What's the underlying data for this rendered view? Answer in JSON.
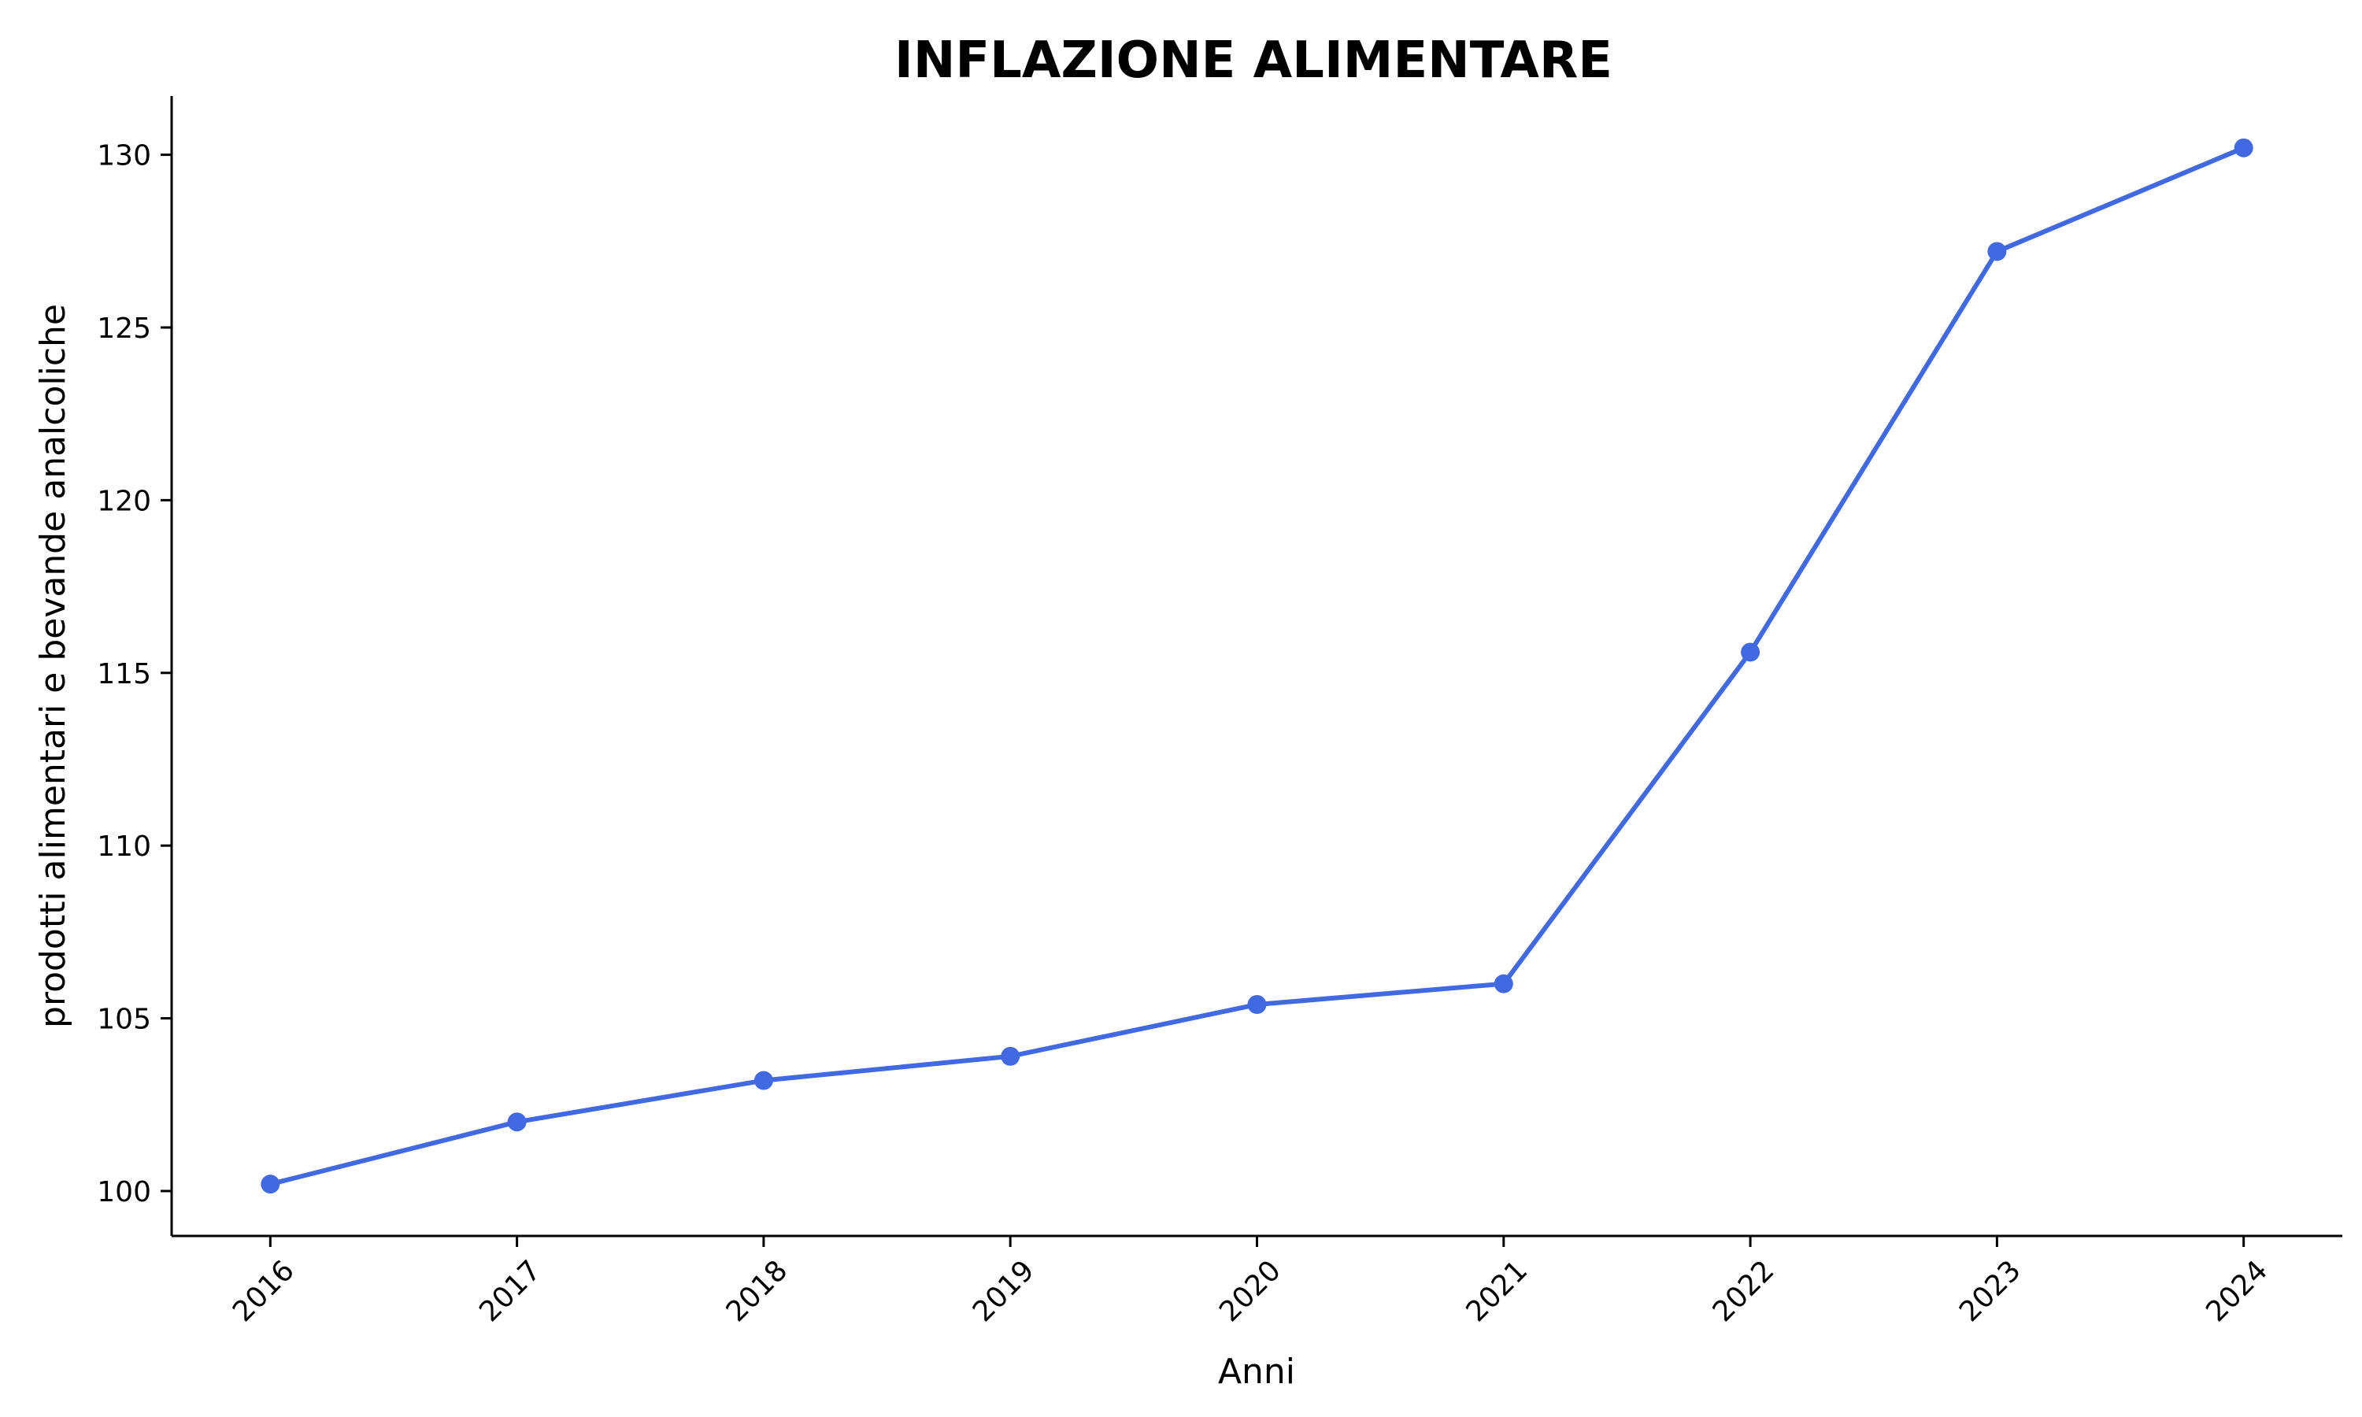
{
  "chart_data": {
    "type": "line",
    "title": "INFLAZIONE ALIMENTARE",
    "xlabel": "Anni",
    "ylabel": "prodotti alimentari e bevande analcoliche",
    "categories": [
      "2016",
      "2017",
      "2018",
      "2019",
      "2020",
      "2021",
      "2022",
      "2023",
      "2024"
    ],
    "x": [
      2016,
      2017,
      2018,
      2019,
      2020,
      2021,
      2022,
      2023,
      2024
    ],
    "series": [
      {
        "values": [
          100.2,
          102.0,
          103.2,
          103.9,
          105.4,
          106.0,
          115.6,
          127.2,
          130.2
        ],
        "color": "#4169e1"
      }
    ],
    "yticks": [
      100,
      105,
      110,
      115,
      120,
      125,
      130
    ],
    "ylim": [
      98.7,
      131.7
    ],
    "xlim": [
      2015.6,
      2024.4
    ],
    "grid": false,
    "legend": "none"
  }
}
